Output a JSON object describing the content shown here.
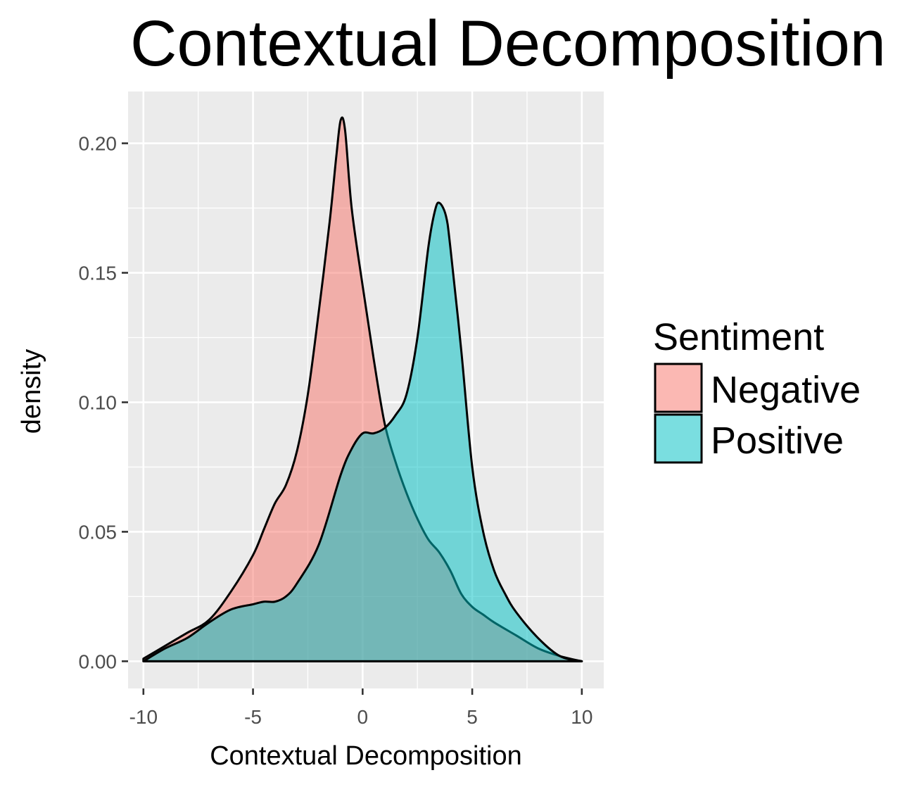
{
  "chart_data": {
    "type": "area",
    "title": "Contextual Decomposition",
    "xlabel": "Contextual Decomposition",
    "ylabel": "density",
    "xlim": [
      -10.7,
      11.0
    ],
    "ylim": [
      -0.0105,
      0.22
    ],
    "x_ticks": [
      -10,
      -5,
      0,
      5,
      10
    ],
    "y_ticks": [
      0.0,
      0.05,
      0.1,
      0.15,
      0.2
    ],
    "x_tick_labels": [
      "-10",
      "-5",
      "0",
      "5",
      "10"
    ],
    "y_tick_labels": [
      "0.00",
      "0.05",
      "0.10",
      "0.15",
      "0.20"
    ],
    "grid": true,
    "legend": {
      "title": "Sentiment",
      "position": "right",
      "entries": [
        "Negative",
        "Positive"
      ]
    },
    "series": [
      {
        "name": "Negative",
        "color": "#F8766D",
        "x": [
          -10,
          -9,
          -8,
          -7,
          -6,
          -5,
          -4.5,
          -4,
          -3.5,
          -3,
          -2.5,
          -2,
          -1.5,
          -1.2,
          -1.0,
          -0.8,
          -0.5,
          0,
          0.5,
          1,
          1.5,
          2,
          2.5,
          3,
          3.5,
          4,
          4.5,
          5,
          5.5,
          6,
          7,
          8,
          9,
          10
        ],
        "values": [
          0.001,
          0.006,
          0.011,
          0.016,
          0.027,
          0.041,
          0.051,
          0.061,
          0.068,
          0.081,
          0.103,
          0.135,
          0.17,
          0.195,
          0.209,
          0.205,
          0.175,
          0.145,
          0.117,
          0.092,
          0.077,
          0.065,
          0.055,
          0.047,
          0.042,
          0.035,
          0.026,
          0.021,
          0.018,
          0.015,
          0.01,
          0.005,
          0.002,
          0.0
        ]
      },
      {
        "name": "Positive",
        "color": "#00BFC4",
        "x": [
          -10,
          -9,
          -8,
          -7,
          -6,
          -5,
          -4.5,
          -4,
          -3.5,
          -3,
          -2,
          -1,
          -0.5,
          0,
          0.5,
          1,
          1.5,
          2,
          2.5,
          3,
          3.3,
          3.5,
          3.8,
          4,
          4.5,
          5,
          5.5,
          6,
          6.5,
          7,
          8,
          9,
          10
        ],
        "values": [
          0.0,
          0.005,
          0.009,
          0.015,
          0.02,
          0.022,
          0.023,
          0.023,
          0.025,
          0.03,
          0.045,
          0.072,
          0.082,
          0.088,
          0.088,
          0.09,
          0.095,
          0.103,
          0.125,
          0.16,
          0.174,
          0.177,
          0.172,
          0.16,
          0.12,
          0.075,
          0.05,
          0.035,
          0.026,
          0.019,
          0.009,
          0.002,
          0.0
        ]
      }
    ]
  }
}
